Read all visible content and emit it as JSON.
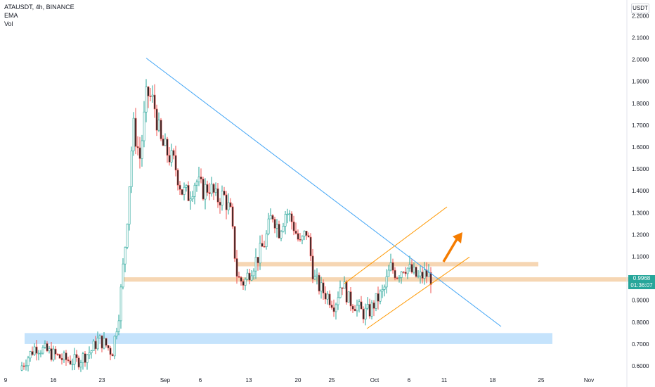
{
  "header": {
    "symbol_title": "ATAUSDT, 4h, BINANCE",
    "indicator_1": "EMA",
    "indicator_2": "Vol"
  },
  "price_axis": {
    "currency": "USDT",
    "current_price": "0.9968",
    "countdown": "01:36:07",
    "current_price_color": "#26a69a"
  },
  "colors": {
    "up": "#26a69a",
    "down": "#ef5350",
    "body": "#1e1e1e",
    "trendline": "#42a5f5",
    "channel": "#ff9800",
    "arrow": "#f57c00",
    "support_zone": "#f5cfa6",
    "blue_zone": "#bbdefb"
  },
  "chart_data": {
    "type": "candlestick",
    "title": "ATAUSDT, 4h, BINANCE",
    "ylim": [
      0.57,
      2.27
    ],
    "y_ticks": [
      "2.2000",
      "2.1000",
      "2.0000",
      "1.9000",
      "1.8000",
      "1.7000",
      "1.6000",
      "1.5000",
      "1.4000",
      "1.3000",
      "1.2000",
      "1.1000",
      "1.0000",
      "0.9000",
      "0.8000",
      "0.7000",
      "0.6000"
    ],
    "x_ticks": [
      "9",
      "16",
      "23",
      "Sep",
      "6",
      "13",
      "20",
      "25",
      "Oct",
      "6",
      "11",
      "18",
      "25",
      "Nov"
    ],
    "price_path": [
      [
        9,
        0.58
      ],
      [
        11,
        0.6
      ],
      [
        13,
        0.69
      ],
      [
        15,
        0.66
      ],
      [
        17,
        0.63
      ],
      [
        19,
        0.62
      ],
      [
        21,
        0.67
      ],
      [
        22,
        0.72
      ],
      [
        23,
        0.7
      ],
      [
        24,
        0.66
      ],
      [
        25,
        0.85
      ],
      [
        26,
        1.2
      ],
      [
        27,
        1.7
      ],
      [
        28,
        1.55
      ],
      [
        29,
        1.85
      ],
      [
        30,
        1.8
      ],
      [
        31,
        1.62
      ],
      [
        33,
        1.52
      ],
      [
        34,
        1.4
      ],
      [
        35,
        1.38
      ],
      [
        36,
        1.45
      ],
      [
        37,
        1.4
      ],
      [
        38,
        1.42
      ],
      [
        39,
        1.36
      ],
      [
        40,
        1.38
      ],
      [
        41,
        1.3
      ],
      [
        42,
        1.0
      ],
      [
        43,
        0.98
      ],
      [
        44,
        1.05
      ],
      [
        45,
        1.1
      ],
      [
        46,
        1.17
      ],
      [
        47,
        1.3
      ],
      [
        48,
        1.22
      ],
      [
        49,
        1.31
      ],
      [
        50,
        1.25
      ],
      [
        51,
        1.15
      ],
      [
        52,
        1.22
      ],
      [
        53,
        1.0
      ],
      [
        54,
        0.95
      ],
      [
        55,
        0.92
      ],
      [
        56,
        0.88
      ],
      [
        57,
        0.99
      ],
      [
        58,
        0.9
      ],
      [
        59,
        0.88
      ],
      [
        60,
        0.84
      ],
      [
        61,
        0.85
      ],
      [
        62,
        0.9
      ],
      [
        63,
        0.94
      ],
      [
        64,
        1.05
      ],
      [
        65,
        1.02
      ],
      [
        66,
        1.06
      ],
      [
        67,
        1.03
      ],
      [
        68,
        1.0
      ],
      [
        69,
        1.02
      ],
      [
        70,
        1.0
      ]
    ],
    "annotations": {
      "downtrend_line": [
        [
          28,
          2.0
        ],
        [
          79,
          0.78
        ]
      ],
      "channel_lower": [
        [
          64,
          0.77
        ],
        [
          78,
          1.12
        ]
      ],
      "channel_upper": [
        [
          61,
          0.97
        ],
        [
          77,
          1.33
        ]
      ],
      "support_zone_1": [
        1.055,
        1.075
      ],
      "support_zone_2": [
        0.985,
        1.005
      ],
      "demand_zone": [
        0.7,
        0.75
      ],
      "arrow_target": 1.22
    }
  }
}
